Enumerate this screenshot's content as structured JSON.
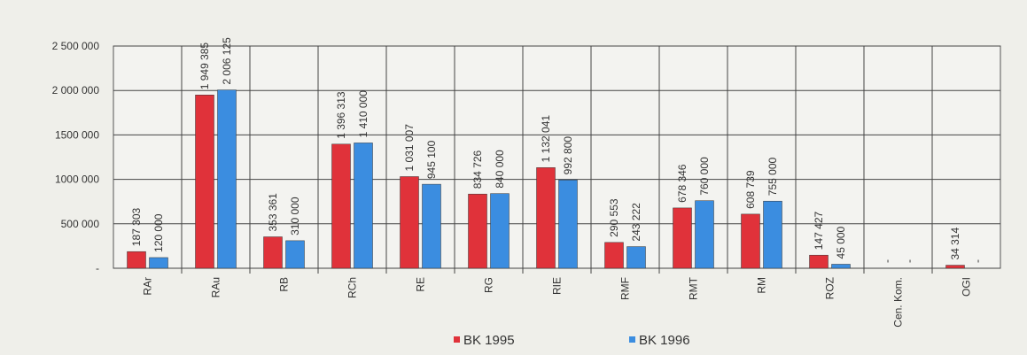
{
  "chart_data": {
    "type": "bar",
    "categories": [
      "RAr",
      "RAu",
      "RB",
      "RCh",
      "RE",
      "RG",
      "RIE",
      "RMF",
      "RMT",
      "RM",
      "ROZ",
      "Cen. Kom.",
      "OGI"
    ],
    "series": [
      {
        "name": "BK 1995",
        "color": "#e0323a",
        "values": [
          187303,
          1949385,
          353361,
          1396313,
          1031007,
          834726,
          1132041,
          290553,
          678346,
          608739,
          147427,
          0,
          34314
        ],
        "value_labels": [
          "187 303",
          "1 949 385",
          "353 361",
          "1 396 313",
          "1 031 007",
          "834 726",
          "1 132 041",
          "290 553",
          "678 346",
          "608 739",
          "147 427",
          "-",
          "34 314"
        ]
      },
      {
        "name": "BK 1996",
        "color": "#3b8de0",
        "values": [
          120000,
          2006125,
          310000,
          1410000,
          945100,
          840000,
          992800,
          243222,
          760000,
          755000,
          45000,
          0,
          0
        ],
        "value_labels": [
          "120 000",
          "2 006 125",
          "310 000",
          "1 410 000",
          "945 100",
          "840 000",
          "992 800",
          "243 222",
          "760 000",
          "755 000",
          "45 000",
          "-",
          "-"
        ]
      }
    ],
    "ylim": [
      0,
      2500000
    ],
    "yticks": [
      {
        "value": 0,
        "label": "-"
      },
      {
        "value": 500000,
        "label": "500 000"
      },
      {
        "value": 1000000,
        "label": "1000 000"
      },
      {
        "value": 1500000,
        "label": "1500 000"
      },
      {
        "value": 2000000,
        "label": "2 000 000"
      },
      {
        "value": 2500000,
        "label": "2 500 000"
      }
    ],
    "grid": true
  }
}
